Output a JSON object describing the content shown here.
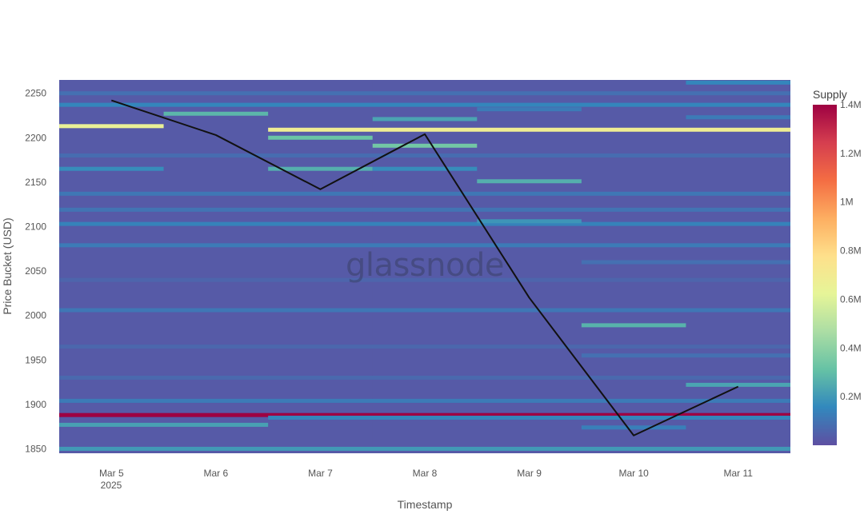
{
  "watermark": "glassnode",
  "chart_data": {
    "type": "heatmap",
    "xlabel": "Timestamp",
    "ylabel": "Price Bucket (USD)",
    "x_categories": [
      "Mar 5",
      "Mar 6",
      "Mar 7",
      "Mar 8",
      "Mar 9",
      "Mar 10",
      "Mar 11"
    ],
    "x_year_label": "2025",
    "ylim": [
      1845,
      2265
    ],
    "y_ticks": [
      1850,
      1900,
      1950,
      2000,
      2050,
      2100,
      2150,
      2200,
      2250
    ],
    "colorbar": {
      "title": "Supply",
      "range": [
        0,
        1400000
      ],
      "ticks": [
        {
          "value": 200000,
          "label": "0.2M"
        },
        {
          "value": 400000,
          "label": "0.4M"
        },
        {
          "value": 600000,
          "label": "0.6M"
        },
        {
          "value": 800000,
          "label": "0.8M"
        },
        {
          "value": 1000000,
          "label": "1M"
        },
        {
          "value": 1200000,
          "label": "1.2M"
        },
        {
          "value": 1400000,
          "label": "1.4M"
        }
      ],
      "colors": [
        "#5e4fa2",
        "#3288bd",
        "#66c2a5",
        "#abdda4",
        "#e6f598",
        "#fee08b",
        "#fdae61",
        "#f46d43",
        "#d53e4f",
        "#9e0142"
      ]
    },
    "base_supply": 30000,
    "bands": [
      {
        "start": 0,
        "end": 6,
        "y": 1888,
        "supply": 1400000
      },
      {
        "start": 0,
        "end": 0,
        "y": 2213,
        "supply": 650000
      },
      {
        "start": 2,
        "end": 6,
        "y": 2209,
        "supply": 680000
      },
      {
        "start": 1,
        "end": 1,
        "y": 2227,
        "supply": 280000
      },
      {
        "start": 2,
        "end": 2,
        "y": 2200,
        "supply": 320000
      },
      {
        "start": 3,
        "end": 3,
        "y": 2191,
        "supply": 340000
      },
      {
        "start": 3,
        "end": 3,
        "y": 2221,
        "supply": 230000
      },
      {
        "start": 2,
        "end": 2,
        "y": 2165,
        "supply": 260000
      },
      {
        "start": 0,
        "end": 0,
        "y": 2165,
        "supply": 170000
      },
      {
        "start": 4,
        "end": 4,
        "y": 2151,
        "supply": 260000
      },
      {
        "start": 5,
        "end": 5,
        "y": 1989,
        "supply": 270000
      },
      {
        "start": 6,
        "end": 6,
        "y": 1922,
        "supply": 230000
      },
      {
        "start": 0,
        "end": 1,
        "y": 1877,
        "supply": 220000
      },
      {
        "start": 0,
        "end": 6,
        "y": 1850,
        "supply": 200000
      },
      {
        "start": 2,
        "end": 6,
        "y": 1885,
        "supply": 150000
      },
      {
        "start": 0,
        "end": 6,
        "y": 2103,
        "supply": 140000
      },
      {
        "start": 4,
        "end": 4,
        "y": 2106,
        "supply": 190000
      },
      {
        "start": 0,
        "end": 6,
        "y": 2079,
        "supply": 120000
      },
      {
        "start": 0,
        "end": 6,
        "y": 2006,
        "supply": 110000
      },
      {
        "start": 0,
        "end": 6,
        "y": 1904,
        "supply": 120000
      },
      {
        "start": 0,
        "end": 6,
        "y": 2137,
        "supply": 110000
      },
      {
        "start": 0,
        "end": 6,
        "y": 2237,
        "supply": 150000
      },
      {
        "start": 0,
        "end": 6,
        "y": 2119,
        "supply": 100000
      },
      {
        "start": 4,
        "end": 4,
        "y": 2232,
        "supply": 120000
      },
      {
        "start": 6,
        "end": 6,
        "y": 2262,
        "supply": 150000
      },
      {
        "start": 5,
        "end": 6,
        "y": 2060,
        "supply": 90000
      },
      {
        "start": 5,
        "end": 5,
        "y": 1874,
        "supply": 130000
      },
      {
        "start": 0,
        "end": 6,
        "y": 1930,
        "supply": 70000
      },
      {
        "start": 0,
        "end": 6,
        "y": 2180,
        "supply": 80000
      },
      {
        "start": 0,
        "end": 6,
        "y": 2040,
        "supply": 60000
      },
      {
        "start": 0,
        "end": 6,
        "y": 1965,
        "supply": 65000
      },
      {
        "start": 5,
        "end": 6,
        "y": 1955,
        "supply": 90000
      },
      {
        "start": 0,
        "end": 6,
        "y": 2250,
        "supply": 90000
      },
      {
        "start": 3,
        "end": 3,
        "y": 2165,
        "supply": 170000
      },
      {
        "start": 6,
        "end": 6,
        "y": 2223,
        "supply": 120000
      }
    ],
    "series": [
      {
        "type": "line",
        "color": "#111111",
        "x": [
          "Mar 5",
          "Mar 6",
          "Mar 7",
          "Mar 8",
          "Mar 9",
          "Mar 10",
          "Mar 11"
        ],
        "y": [
          2242,
          2203,
          2142,
          2204,
          2020,
          1865,
          1920
        ]
      }
    ]
  }
}
